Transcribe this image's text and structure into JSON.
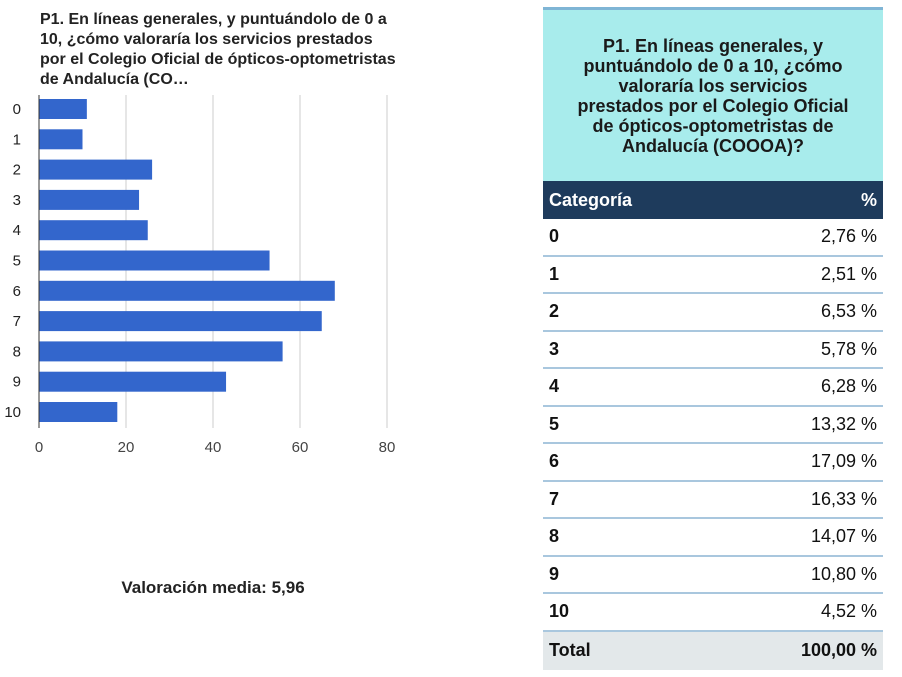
{
  "chart_data": {
    "type": "bar",
    "orientation": "horizontal",
    "title": "P1. En líneas generales, y puntuándolo de 0 a 10, ¿cómo valoraría los servicios prestados por el Colegio Oficial de ópticos-optometristas de Andalucía (CO…",
    "categories": [
      "0",
      "1",
      "2",
      "3",
      "4",
      "5",
      "6",
      "7",
      "8",
      "9",
      "10"
    ],
    "values": [
      11,
      10,
      26,
      23,
      25,
      53,
      68,
      65,
      56,
      43,
      18
    ],
    "xlim": [
      0,
      80
    ],
    "xticks": [
      "0",
      "20",
      "40",
      "60",
      "80"
    ],
    "grid": true,
    "bar_color": "#3366cc"
  },
  "summary": {
    "mean_label": "Valoración media: 5,96"
  },
  "table": {
    "title": "P1. En líneas generales, y puntuándolo de 0 a 10, ¿cómo valoraría los servicios prestados por el Colegio Oficial de ópticos-optometristas de Andalucía (COOOA)?",
    "header": {
      "category": "Categoría",
      "percent": "%"
    },
    "rows": [
      {
        "category": "0",
        "percent": "2,76 %"
      },
      {
        "category": "1",
        "percent": "2,51 %"
      },
      {
        "category": "2",
        "percent": "6,53 %"
      },
      {
        "category": "3",
        "percent": "5,78 %"
      },
      {
        "category": "4",
        "percent": "6,28 %"
      },
      {
        "category": "5",
        "percent": "13,32 %"
      },
      {
        "category": "6",
        "percent": "17,09 %"
      },
      {
        "category": "7",
        "percent": "16,33 %"
      },
      {
        "category": "8",
        "percent": "14,07 %"
      },
      {
        "category": "9",
        "percent": "10,80 %"
      },
      {
        "category": "10",
        "percent": "4,52 %"
      }
    ],
    "total": {
      "label": "Total",
      "value": "100,00 %"
    },
    "colors": {
      "title_bg": "#a8ecec",
      "header_bg": "#1e3b5c",
      "row_border": "#a9c7de",
      "total_bg": "#e3e8ea"
    }
  }
}
